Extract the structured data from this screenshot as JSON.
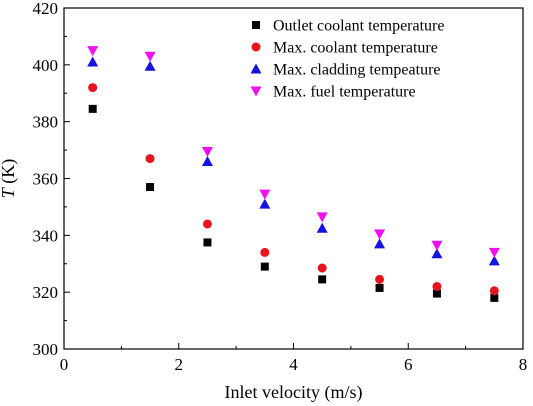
{
  "chart_data": {
    "type": "scatter",
    "title": "",
    "xlabel": "Inlet velocity (m/s)",
    "ylabel_italic": "T",
    "ylabel_unit": " (K)",
    "xlim": [
      0,
      8
    ],
    "ylim": [
      300,
      420
    ],
    "xticks": [
      0,
      2,
      4,
      6,
      8
    ],
    "yticks": [
      300,
      320,
      340,
      360,
      380,
      400,
      420
    ],
    "grid": false,
    "legend_position": "top-right",
    "x": [
      0.5,
      1.5,
      2.5,
      3.5,
      4.5,
      5.5,
      6.5,
      7.5
    ],
    "series": [
      {
        "name": "Outlet coolant temperature",
        "marker": "square",
        "color": "#000000",
        "values": [
          384.5,
          357,
          337.5,
          329,
          324.5,
          321.5,
          319.5,
          318
        ]
      },
      {
        "name": "Max. coolant temperature",
        "marker": "circle",
        "color": "#e8141c",
        "values": [
          392,
          367,
          344,
          334,
          328.5,
          324.5,
          322,
          320.5
        ]
      },
      {
        "name": "Max. cladding tempeature",
        "marker": "triangle-up",
        "color": "#1414e0",
        "values": [
          401,
          399.5,
          366,
          351,
          342.5,
          337,
          333.5,
          331
        ]
      },
      {
        "name": "Max. fuel temperature",
        "marker": "triangle-down",
        "color": "#ee10ee",
        "values": [
          405,
          403,
          369.5,
          354.5,
          346.5,
          340.5,
          336.5,
          334
        ]
      }
    ]
  }
}
